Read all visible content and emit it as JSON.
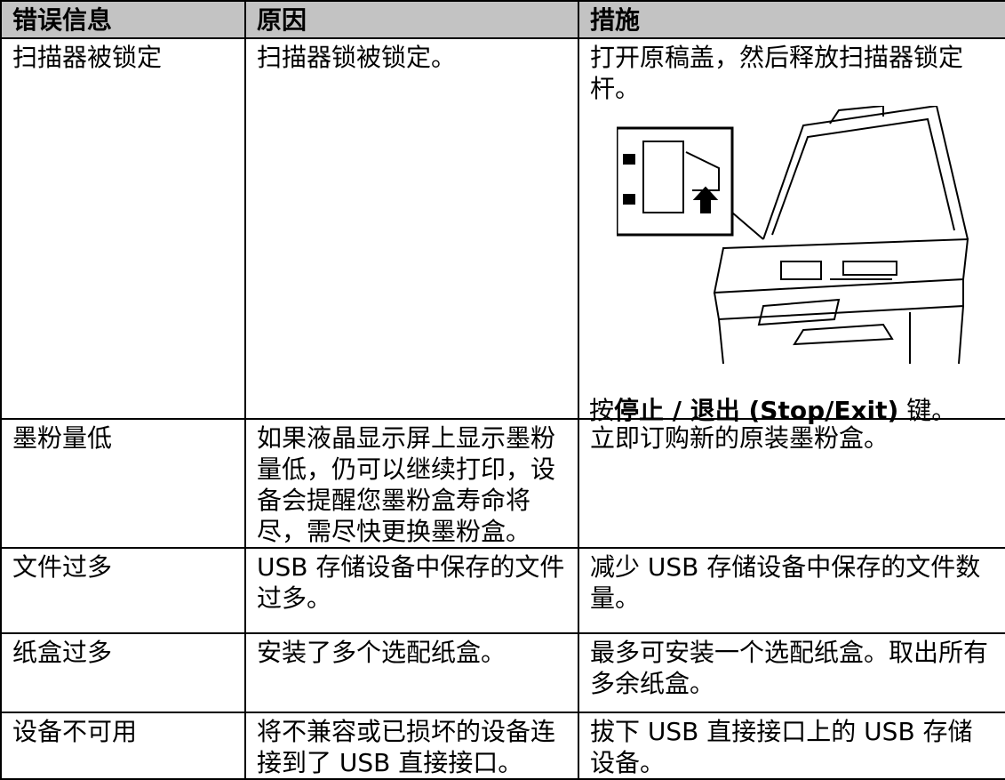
{
  "table": {
    "header": [
      "错误信息",
      "原因",
      "措施"
    ],
    "rows": [
      [
        "扫描器被锁定",
        "扫描器锁被锁定。",
        "打开原稿盖，然后释放扫描器锁定杆。"
      ],
      [
        "墨粉量低",
        "如果液晶显示屏上显示墨粉量低，仍可以继续打印，设备会提醒您墨粉盒寿命将尽，需尽快更换墨粉盒。",
        "立即订购新的原装墨粉盒。"
      ],
      [
        "文件过多",
        "USB 存储设备中保存的文件过多。",
        "减少 USB 存储设备中保存的文件数量。"
      ],
      [
        "纸盒过多",
        "安装了多个选配纸盒。",
        "最多可安装一个选配纸盒。取出所有多余纸盒。"
      ],
      [
        "设备不可用",
        "将不兼容或已损坏的设备连接到了 USB 直接接口。",
        "拔下 USB 直接接口上的 USB 存储设备。"
      ]
    ],
    "step": {
      "before": "按",
      "key": "停止 / 退出 (Stop/Exit)",
      "after": " 键。"
    }
  }
}
